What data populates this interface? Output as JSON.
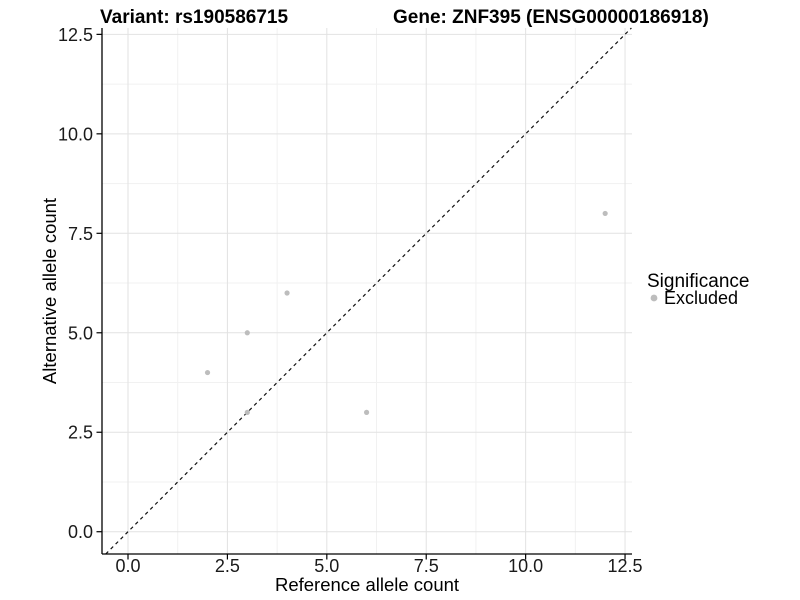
{
  "titles": {
    "variant": "Variant: rs190586715",
    "gene": "Gene: ZNF395 (ENSG00000186918)"
  },
  "axes": {
    "x_label": "Reference allele count",
    "y_label": "Alternative allele count"
  },
  "legend": {
    "title": "Significance",
    "items": [
      {
        "label": "Excluded",
        "color": "#bdbdbd"
      }
    ]
  },
  "colors": {
    "background": "#ffffff",
    "point": "#bdbdbd",
    "axis_line": "#000000",
    "grid_major": "#e2e2e2",
    "grid_minor": "#f1f1f1",
    "diagonal_line": "#111111",
    "tick_text": "#1a1a1a"
  },
  "chart_data": {
    "type": "scatter",
    "title": "Variant: rs190586715   |   Gene: ZNF395 (ENSG00000186918)",
    "xlabel": "Reference allele count",
    "ylabel": "Alternative allele count",
    "xlim": [
      -0.654,
      12.675
    ],
    "ylim": [
      -0.56,
      12.66
    ],
    "x_ticks": [
      0,
      2.5,
      5,
      7.5,
      10,
      12.5
    ],
    "y_ticks": [
      0,
      2.5,
      5,
      7.5,
      10,
      12.5
    ],
    "x_tick_labels": [
      "0.0",
      "2.5",
      "5.0",
      "7.5",
      "10.0",
      "12.5"
    ],
    "y_tick_labels": [
      "0.0",
      "2.5",
      "5.0",
      "7.5",
      "10.0",
      "12.5"
    ],
    "minor_ticks": [
      1.25,
      3.75,
      6.25,
      8.75,
      11.25
    ],
    "grid": true,
    "legend_position": "right",
    "reference_line": {
      "type": "identity",
      "equation": "y = x",
      "style": "dashed",
      "color": "#111111"
    },
    "series": [
      {
        "name": "Excluded",
        "color": "#bdbdbd",
        "points": [
          [
            2,
            4
          ],
          [
            3,
            3
          ],
          [
            3,
            5
          ],
          [
            4,
            6
          ],
          [
            6,
            3
          ],
          [
            12,
            8
          ]
        ]
      }
    ]
  }
}
